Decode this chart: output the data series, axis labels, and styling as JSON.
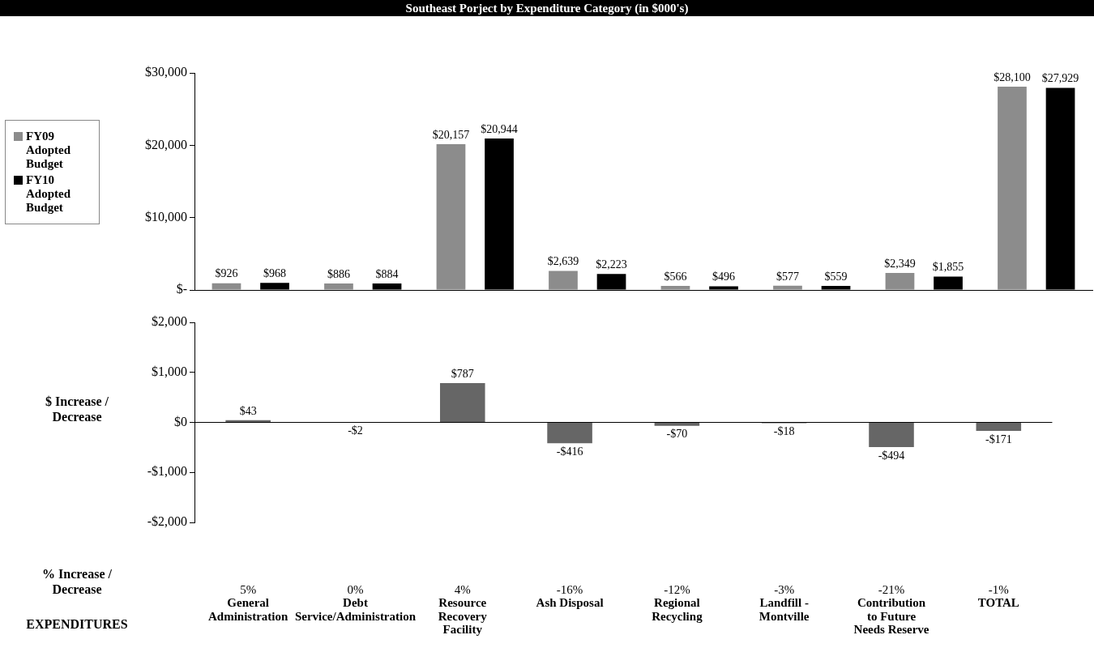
{
  "chart_data": [
    {
      "type": "bar",
      "title": "Southeast Porject by Expenditure Category (in $000's)",
      "categories": [
        null,
        null,
        null,
        null,
        null,
        null,
        null,
        null
      ],
      "series": [
        {
          "name": "FY09 Adopted Budget",
          "color": "#8c8c8c",
          "values": [
            926,
            886,
            20157,
            2639,
            566,
            577,
            2349,
            28100
          ],
          "value_labels": [
            "$926",
            "$886",
            "$20,157",
            "$2,639",
            "$566",
            "$577",
            "$2,349",
            "$28,100"
          ]
        },
        {
          "name": "FY10 Adopted Budget",
          "color": "#000000",
          "values": [
            968,
            884,
            20944,
            2223,
            496,
            559,
            1855,
            27929
          ],
          "value_labels": [
            "$968",
            "$884",
            "$20,944",
            "$2,223",
            "$496",
            "$559",
            "$1,855",
            "$27,929"
          ]
        }
      ],
      "ylim": [
        0,
        30000
      ],
      "yticks": [
        {
          "value": 0,
          "label": "$-"
        },
        {
          "value": 10000,
          "label": "$10,000"
        },
        {
          "value": 20000,
          "label": "$20,000"
        },
        {
          "value": 30000,
          "label": "$30,000"
        }
      ],
      "tick_labels": "y",
      "legend": "left"
    },
    {
      "type": "bar",
      "ylabel": "$ Increase / Decrease",
      "categories": [
        "General Administration",
        "Debt Service/Administration",
        "Resource Recovery Facility",
        "Ash Disposal",
        "Regional Recycling",
        "Landfill - Montville",
        "Contribution to Future Needs Reserve",
        "TOTAL"
      ],
      "values": [
        43,
        -2,
        787,
        -416,
        -70,
        -18,
        -494,
        -171
      ],
      "color": "#666666",
      "value_labels": [
        "$43",
        "-$2",
        "$787",
        "-$416",
        "-$70",
        "-$18",
        "-$494",
        "-$171"
      ],
      "ylim": [
        -2000,
        2000
      ],
      "yticks": [
        {
          "value": -2000,
          "label": "-$2,000"
        },
        {
          "value": -1000,
          "label": "-$1,000"
        },
        {
          "value": 0,
          "label": "$0"
        },
        {
          "value": 1000,
          "label": "$1,000"
        },
        {
          "value": 2000,
          "label": "$2,000"
        }
      ],
      "ref_lines": [
        {
          "axis": "y",
          "value": 0,
          "color": "#000000"
        }
      ],
      "annotations": [
        "% Increase / Decrease",
        "EXPENDITURES",
        "5%",
        "0%",
        "4%",
        "-16%",
        "-12%",
        "-3%",
        "-21%",
        "-1%"
      ]
    }
  ]
}
